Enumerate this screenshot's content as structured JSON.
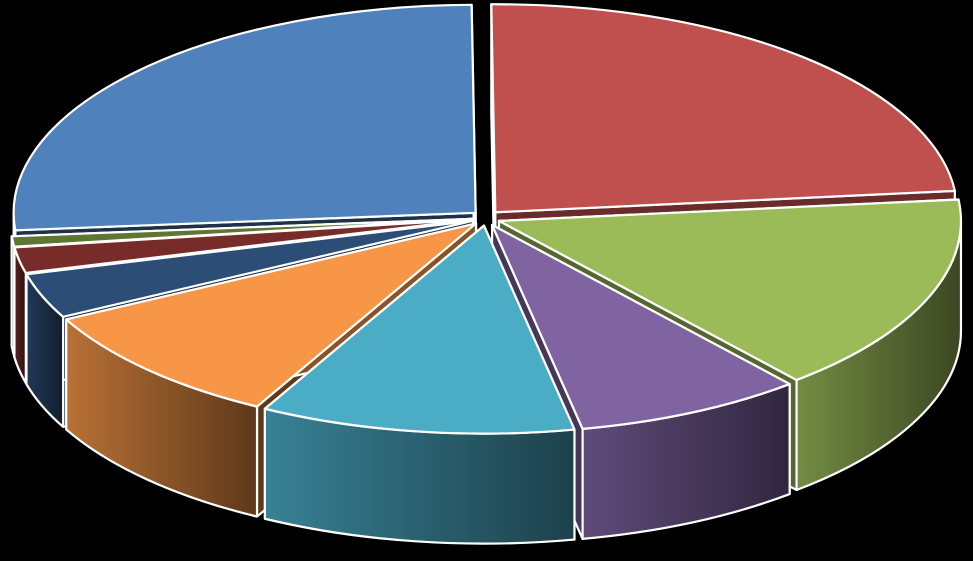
{
  "chart_data": {
    "type": "pie",
    "style": "3d-exploded",
    "title": "",
    "legend": "none",
    "data_labels": "none",
    "slices": [
      {
        "value": 23.5,
        "color": "#C0504D"
      },
      {
        "value": 15.5,
        "color": "#9BBB59"
      },
      {
        "value": 8.0,
        "color": "#8064A2"
      },
      {
        "value": 11.0,
        "color": "#4BACC6"
      },
      {
        "value": 9.5,
        "color": "#F79646"
      },
      {
        "value": 3.5,
        "color": "#2C4D75"
      },
      {
        "value": 2.0,
        "color": "#772C2A"
      },
      {
        "value": 0.8,
        "color": "#5F7530"
      },
      {
        "value": 26.2,
        "color": "#4F81BD"
      }
    ]
  }
}
